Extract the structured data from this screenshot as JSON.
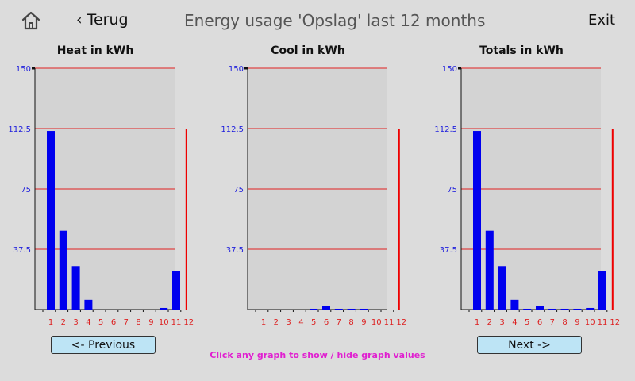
{
  "header": {
    "back_label": "Terug",
    "back_chevron": "‹",
    "title": "Energy usage 'Opslag' last 12 months",
    "exit_label": "Exit",
    "home_icon": "home-icon"
  },
  "footer": {
    "previous_label": "<- Previous",
    "next_label": "Next ->",
    "hint": "Click any graph to show / hide graph values"
  },
  "colors": {
    "background": "#dcdcdc",
    "plot_background": "#d3d3d3",
    "bar": "#0000ee",
    "gridline": "#e02020",
    "tick_label_y": "#2020dd",
    "tick_label_x": "#dd2020",
    "current_month_marker": "#ee0000",
    "button": "#bde4f5",
    "hint": "#e020d0"
  },
  "chart_data": [
    {
      "type": "bar",
      "title": "Heat in kWh",
      "categories": [
        "1",
        "2",
        "3",
        "4",
        "5",
        "6",
        "7",
        "8",
        "9",
        "10",
        "11",
        "12"
      ],
      "values": [
        111,
        49,
        27,
        6,
        0,
        0,
        0,
        0,
        0,
        1,
        24,
        0
      ],
      "ylim": [
        0,
        150
      ],
      "yticks": [
        "37.5",
        "75",
        "112.5",
        "150"
      ],
      "grid": true,
      "current_month_marker": 12
    },
    {
      "type": "bar",
      "title": "Cool in kWh",
      "categories": [
        "1",
        "2",
        "3",
        "4",
        "5",
        "6",
        "7",
        "8",
        "9",
        "10",
        "11",
        "12"
      ],
      "values": [
        0,
        0,
        0,
        0,
        0.5,
        2,
        0.5,
        0.5,
        0.5,
        0,
        0,
        0
      ],
      "ylim": [
        0,
        150
      ],
      "yticks": [
        "37.5",
        "75",
        "112.5",
        "150"
      ],
      "grid": true,
      "current_month_marker": 12
    },
    {
      "type": "bar",
      "title": "Totals in kWh",
      "categories": [
        "1",
        "2",
        "3",
        "4",
        "5",
        "6",
        "7",
        "8",
        "9",
        "10",
        "11",
        "12"
      ],
      "values": [
        111,
        49,
        27,
        6,
        0.5,
        2,
        0.5,
        0.5,
        0.5,
        1,
        24,
        0
      ],
      "ylim": [
        0,
        150
      ],
      "yticks": [
        "37.5",
        "75",
        "112.5",
        "150"
      ],
      "grid": true,
      "current_month_marker": 12
    }
  ]
}
